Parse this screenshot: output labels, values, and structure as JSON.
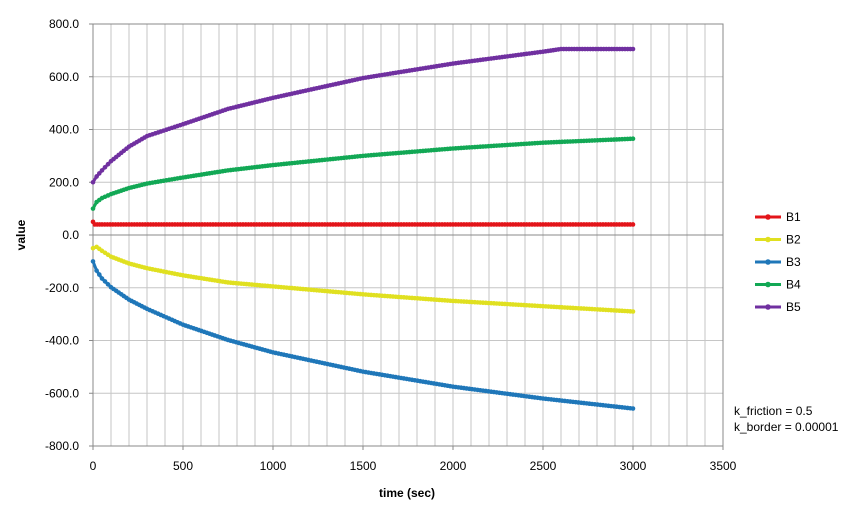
{
  "chart_data": {
    "type": "line",
    "title": "",
    "xlabel": "time (sec)",
    "ylabel": "value",
    "xlim": [
      0,
      3500
    ],
    "ylim": [
      -800,
      800
    ],
    "x_ticks": [
      "0",
      "500",
      "1000",
      "1500",
      "2000",
      "2500",
      "3000",
      "3500"
    ],
    "y_ticks": [
      "800.0",
      "600.0",
      "400.0",
      "200.0",
      "0.0",
      "-200.0",
      "-400.0",
      "-600.0",
      "-800.0"
    ],
    "grid": true,
    "legend_position": "right",
    "series": [
      {
        "name": "B1",
        "color": "#e3151a",
        "x": [
          0,
          10,
          50,
          500,
          1000,
          1500,
          2000,
          2500,
          3000
        ],
        "y": [
          50,
          40,
          40,
          40,
          40,
          40,
          40,
          40,
          40
        ]
      },
      {
        "name": "B2",
        "color": "#e0e020",
        "x": [
          0,
          20,
          50,
          100,
          200,
          300,
          500,
          750,
          1000,
          1500,
          2000,
          2500,
          3000
        ],
        "y": [
          -50,
          -45,
          -60,
          -82,
          -108,
          -126,
          -153,
          -180,
          -195,
          -225,
          -250,
          -270,
          -290
        ]
      },
      {
        "name": "B3",
        "color": "#1f77b9",
        "x": [
          0,
          20,
          50,
          100,
          200,
          300,
          500,
          750,
          1000,
          1500,
          2000,
          2500,
          3000
        ],
        "y": [
          -100,
          -135,
          -165,
          -198,
          -245,
          -280,
          -340,
          -398,
          -445,
          -518,
          -575,
          -620,
          -658
        ]
      },
      {
        "name": "B4",
        "color": "#12a855",
        "x": [
          0,
          20,
          50,
          100,
          200,
          300,
          500,
          750,
          1000,
          1500,
          2000,
          2500,
          3000
        ],
        "y": [
          100,
          125,
          140,
          155,
          178,
          195,
          218,
          245,
          265,
          300,
          328,
          350,
          365
        ]
      },
      {
        "name": "B5",
        "color": "#7030a0",
        "x": [
          0,
          20,
          50,
          100,
          200,
          300,
          500,
          750,
          1000,
          1500,
          2000,
          2500,
          2600,
          3000
        ],
        "y": [
          200,
          222,
          245,
          280,
          335,
          375,
          420,
          478,
          520,
          595,
          650,
          695,
          705,
          705
        ]
      }
    ]
  },
  "annotations": {
    "k_friction": "k_friction = 0.5",
    "k_border": "k_border = 0.00001"
  }
}
